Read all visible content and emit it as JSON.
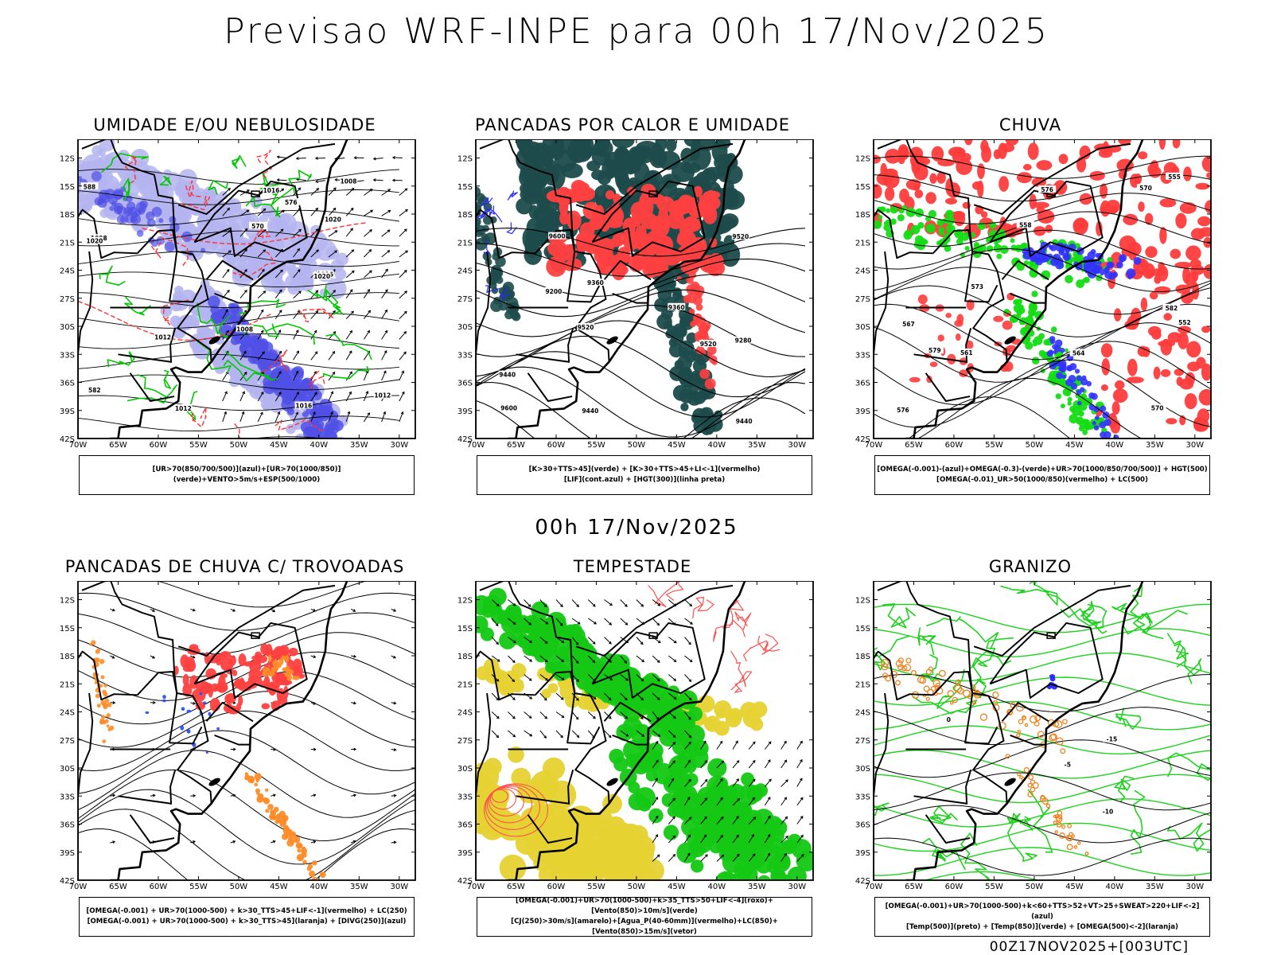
{
  "title": "Previsao WRF-INPE  para 00h 17/Nov/2025",
  "subtitle": "00h 17/Nov/2025",
  "footer": "00Z17NOV2025+[003UTC]",
  "axes": {
    "lat_labels": [
      "12S",
      "15S",
      "18S",
      "21S",
      "24S",
      "27S",
      "30S",
      "33S",
      "36S",
      "39S",
      "42S"
    ],
    "lon_labels": [
      "70W",
      "65W",
      "60W",
      "55W",
      "50W",
      "45W",
      "40W",
      "35W",
      "30W"
    ]
  },
  "panels": [
    {
      "id": "umidade",
      "title": "UMIDADE E/OU NEBULOSIDADE",
      "legend": [
        "[UR>70(850/700/500)](azul)+[UR>70(1000/850)](verde)+VENTO>5m/s+ESP(500/1000)"
      ],
      "contour_labels": [
        "1008",
        "1012",
        "1016",
        "1020",
        "1008",
        "1012",
        "1016",
        "1020",
        "570",
        "576",
        "582",
        "588",
        "1016",
        "1012",
        "1008",
        "1020"
      ],
      "colors": {
        "blue_light": "#b4b4f0",
        "blue_dark": "#5050e6",
        "green": "#00c800",
        "red": "#ff3232"
      }
    },
    {
      "id": "pancadas-calor",
      "title": "PANCADAS POR CALOR E UMIDADE",
      "legend": [
        "[K>30+TTS>45](verde) + [K>30+TTS>45+LI<-1](vermelho)",
        "[LIF](cont.azul) + [HGT(300)](linha preta)"
      ],
      "contour_labels": [
        "9520",
        "9600",
        "9440",
        "9360",
        "9280",
        "9200",
        "9520",
        "9600",
        "9440",
        "9360",
        "9520",
        "9440"
      ],
      "colors": {
        "teal": "#1e4b4b",
        "red": "#ff4040",
        "blue": "#2828ff"
      }
    },
    {
      "id": "chuva",
      "title": "CHUVA",
      "legend": [
        "[OMEGA(-0.001)-(azul)+OMEGA(-0.3)-(verde)+UR>70(1000/850/700/500)] + HGT(500)",
        "[OMEGA(-0.01)_UR>50(1000/850)(vermelho) + LC(500)"
      ],
      "contour_labels": [
        "582",
        "576",
        "570",
        "564",
        "558",
        "552",
        "579",
        "576",
        "573",
        "570",
        "567",
        "561",
        "555"
      ],
      "colors": {
        "red": "#ff3c3c",
        "green": "#14dc14",
        "blue": "#3232ff"
      }
    },
    {
      "id": "trovoadas",
      "title": "PANCADAS DE CHUVA C/ TROVOADAS",
      "legend": [
        "[OMEGA(-0.001) + UR>70(1000-500) + k>30_TTS>45+LIF<-1](vermelho) + LC(250)",
        "[OMEGA(-0.001) + UR>70(1000-500) + k>30_TTS>45](laranja) + [DIVG(250)](azul)"
      ],
      "contour_labels": [],
      "colors": {
        "red": "#ff4040",
        "orange": "#ff8c28",
        "blue": "#2850ff"
      }
    },
    {
      "id": "tempestade",
      "title": "TEMPESTADE",
      "legend": [
        "[OMEGA(-0.001)+UR>70(1000-500)+k>35_TTS>50+LIF<-4](roxo)+[Vento(850)>10m/s](verde)",
        "[CJ(250)>30m/s](amarelo)+[Agua_P(40-60mm)](vermelho)+LC(850)+[Vento(850)>15m/s](vetor)"
      ],
      "contour_labels": [],
      "colors": {
        "green": "#14c814",
        "yellow": "#e6d232",
        "red": "#ff5050"
      }
    },
    {
      "id": "granizo",
      "title": "GRANIZO",
      "legend": [
        "[OMEGA(-0.001)+UR>70(1000-500)+k<60+TTS>52+VT>25+SWEAT>220+LIF<-2](azul)",
        "[Temp(500)](preto) + [Temp(850)](verde) + [OMEGA(500)<-2](laranja)"
      ],
      "contour_labels": [
        "-15",
        "-10",
        "-5",
        "0"
      ],
      "colors": {
        "green": "#1ed21e",
        "orange": "#f0821e",
        "blue": "#2828ff"
      }
    }
  ]
}
